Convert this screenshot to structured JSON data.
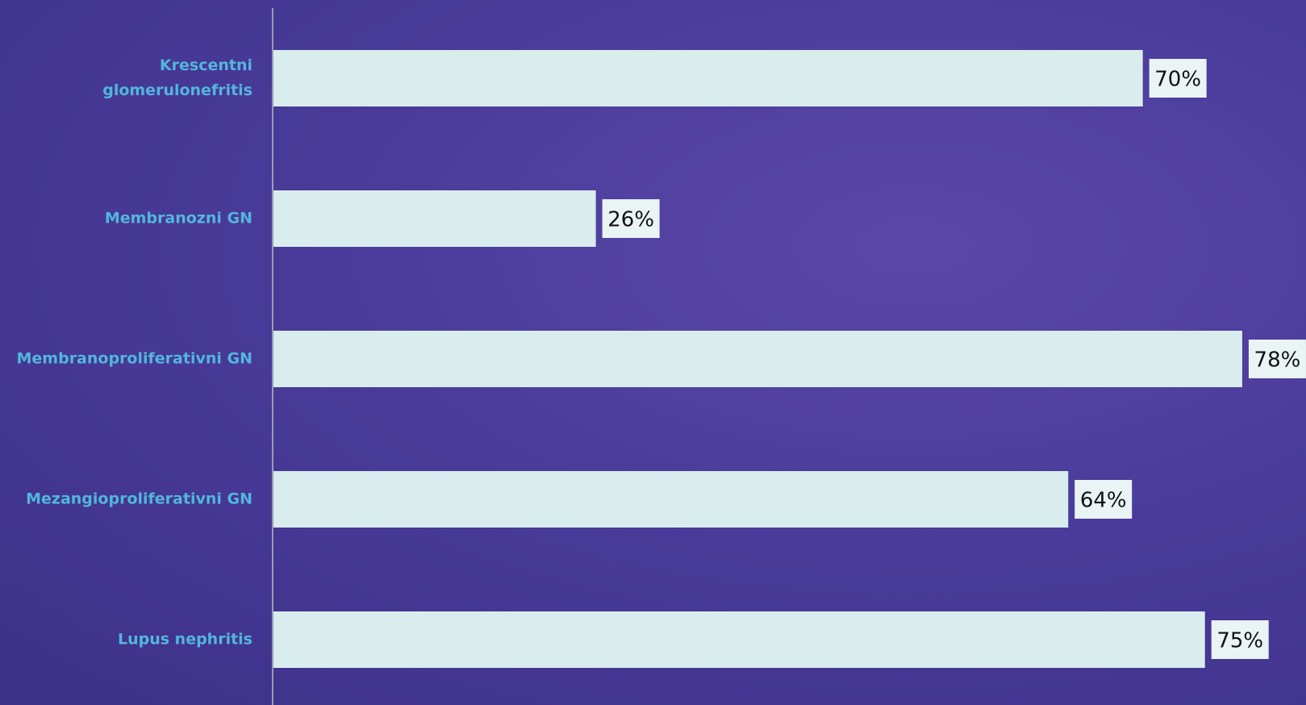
{
  "chart_data": {
    "type": "hbar",
    "categories": [
      "Krescentni glomerulonefritis",
      "Membranozni GN",
      "Membranoproliferativni GN",
      "Mezangioproliferativni GN",
      "Lupus nephritis"
    ],
    "values": [
      70,
      26,
      78,
      64,
      75
    ],
    "value_labels": [
      "70%",
      "26%",
      "78%",
      "64%",
      "75%"
    ],
    "color": "#d9ecee",
    "xlim": [
      0,
      83
    ]
  }
}
